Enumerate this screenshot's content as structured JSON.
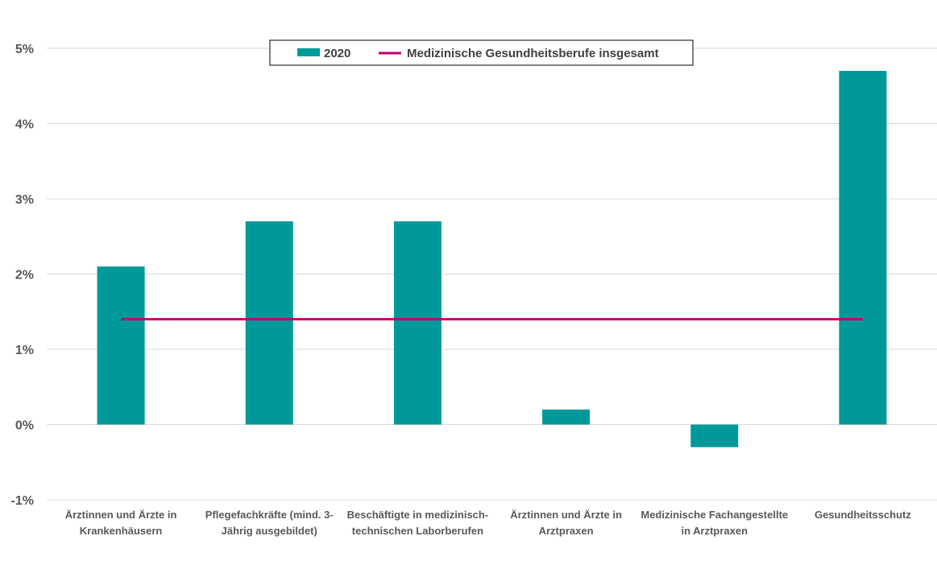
{
  "chart_data": {
    "type": "bar",
    "categories": [
      [
        "Ärztinnen und Ärzte in",
        "Krankenhäusern"
      ],
      [
        "Pflegefachkräfte (mind. 3-",
        "Jährig ausgebildet)"
      ],
      [
        "Beschäftigte in medizinisch-",
        "technischen Laborberufen"
      ],
      [
        "Ärztinnen und Ärzte in",
        "Arztpraxen"
      ],
      [
        "Medizinische Fachangestellte",
        "in Arztpraxen"
      ],
      [
        "Gesundheitsschutz"
      ]
    ],
    "series": [
      {
        "name": "2020",
        "type": "bar",
        "color": "#009999",
        "values": [
          2.1,
          2.7,
          2.7,
          0.2,
          -0.3,
          4.7
        ]
      },
      {
        "name": "Medizinische Gesundheitsberufe insgesamt",
        "type": "line",
        "color": "#C0006A",
        "value": 1.4
      }
    ],
    "yticks": [
      "5%",
      "4%",
      "3%",
      "2%",
      "1%",
      "0%",
      "-1%"
    ],
    "ylim": [
      -1,
      5
    ],
    "grid": true,
    "legend_position": "top-center",
    "title": "",
    "xlabel": "",
    "ylabel": ""
  }
}
